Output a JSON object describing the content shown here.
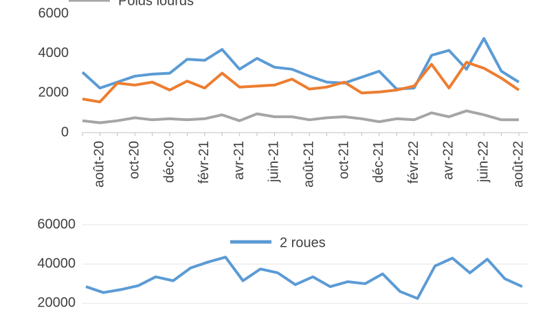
{
  "chart_data": [
    {
      "type": "line",
      "categories": [
        null,
        "août-20",
        null,
        "oct-20",
        null,
        "déc-20",
        null,
        "févr-21",
        null,
        "avr-21",
        null,
        "juin-21",
        null,
        "août-21",
        null,
        "oct-21",
        null,
        "déc-21",
        null,
        "févr-22",
        null,
        "avr-22",
        null,
        "juin-22",
        null,
        "août-22"
      ],
      "series": [
        {
          "color": "#5b9bd5",
          "values": [
            3050,
            2250,
            2550,
            2850,
            2950,
            3000,
            3700,
            3650,
            4200,
            3200,
            3750,
            3300,
            3200,
            2850,
            2550,
            2500,
            2800,
            3100,
            2200,
            2250,
            3900,
            4150,
            3200,
            4750,
            3100,
            2550
          ]
        },
        {
          "color": "#ed7d31",
          "values": [
            1700,
            1550,
            2500,
            2400,
            2550,
            2150,
            2600,
            2250,
            3000,
            2300,
            2350,
            2400,
            2700,
            2200,
            2300,
            2550,
            2000,
            2050,
            2150,
            2350,
            3450,
            2250,
            3550,
            3250,
            2750,
            2150
          ]
        },
        {
          "name": "Poids lourds",
          "color": "#a5a5a5",
          "values": [
            600,
            500,
            600,
            750,
            650,
            700,
            650,
            700,
            900,
            600,
            950,
            800,
            800,
            650,
            750,
            800,
            700,
            550,
            700,
            650,
            1000,
            800,
            1100,
            900,
            650,
            650
          ]
        }
      ],
      "ylim": [
        0,
        6000
      ],
      "yticks": [
        0,
        2000,
        4000,
        6000
      ],
      "grid": false,
      "legend": "top"
    },
    {
      "type": "line",
      "series": [
        {
          "name": "2 roues",
          "color": "#5b9bd5",
          "values": [
            28500,
            25500,
            27000,
            29000,
            33500,
            31500,
            38000,
            41000,
            43500,
            31500,
            37500,
            35500,
            29500,
            33500,
            28500,
            31000,
            30000,
            35000,
            26000,
            22500,
            39000,
            43000,
            35500,
            42500,
            32500,
            28500
          ]
        }
      ],
      "ylim": [
        10000,
        60000
      ],
      "yticks": [
        20000,
        40000,
        60000
      ],
      "grid": true,
      "legend": "top"
    }
  ]
}
